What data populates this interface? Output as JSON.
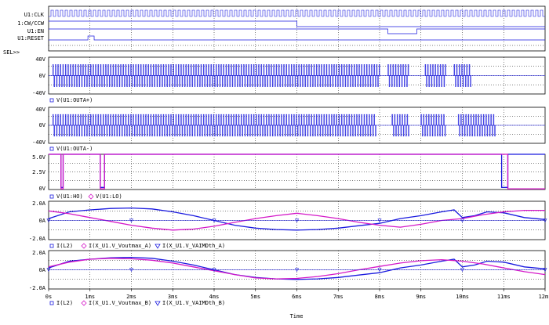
{
  "colors": {
    "trace_blue": "#1a1adf",
    "trace_magenta": "#d418c8",
    "frame": "#000000",
    "grid": "#000000",
    "text": "#000000"
  },
  "digital": {
    "signals": [
      "U1:CLK",
      "1:CW/CCW",
      "U1:EN",
      "U1:RESET"
    ],
    "selector": "SEL>>"
  },
  "chart_data": [
    {
      "type": "line",
      "name": "OUTA+",
      "legend": [
        "V(U1:OUTA+)"
      ],
      "yticks": [
        "40V",
        "0V",
        "-40V"
      ],
      "ylim": [
        -40,
        40
      ],
      "xlim": [
        0,
        12
      ],
      "series": [
        {
          "name": "V(U1:OUTA+)",
          "color": "#1a1adf",
          "kind": "pwm",
          "high": 24,
          "low": -24,
          "segments": [
            [
              0.1,
              8.0
            ],
            [
              8.2,
              8.7
            ],
            [
              9.1,
              9.6
            ],
            [
              9.8,
              10.2
            ]
          ]
        }
      ]
    },
    {
      "type": "line",
      "name": "OUTA-",
      "legend": [
        "V(U1:OUTA-)"
      ],
      "yticks": [
        "40V",
        "0V",
        "-40V"
      ],
      "ylim": [
        -40,
        40
      ],
      "xlim": [
        0,
        12
      ],
      "series": [
        {
          "name": "V(U1:OUTA-)",
          "color": "#1a1adf",
          "kind": "pwm",
          "high": 24,
          "low": -24,
          "segments": [
            [
              0.1,
              7.9
            ],
            [
              8.3,
              8.7
            ],
            [
              9.0,
              9.6
            ],
            [
              9.9,
              10.8
            ]
          ]
        }
      ]
    },
    {
      "type": "line",
      "name": "HO_LO",
      "legend": [
        "V(U1:HO)",
        "V(U1:LO)"
      ],
      "yticks": [
        "5.0V",
        "2.5V",
        "0V"
      ],
      "ylim": [
        0,
        5
      ],
      "xlim": [
        0,
        12
      ],
      "series": [
        {
          "name": "V(U1:HO)",
          "color": "#1a1adf",
          "x": [
            0,
            0.3,
            0.3,
            0.35,
            0.35,
            1.25,
            1.25,
            1.35,
            1.35,
            10.95,
            10.95,
            11.1,
            11.1,
            12.0
          ],
          "y": [
            5,
            5,
            0.3,
            0.3,
            5,
            5,
            0.3,
            0.3,
            5,
            5,
            0.3,
            0.3,
            5,
            5
          ]
        },
        {
          "name": "V(U1:LO)",
          "color": "#d418c8",
          "x": [
            0,
            0.3,
            0.3,
            0.35,
            0.35,
            1.25,
            1.25,
            1.35,
            1.35,
            11.1,
            11.1,
            12.0
          ],
          "y": [
            5,
            5,
            0.1,
            0.1,
            5,
            5,
            0.1,
            0.1,
            5,
            5,
            0.1,
            0.1
          ]
        }
      ]
    },
    {
      "type": "line",
      "name": "Current A",
      "legend": [
        "I(L2)",
        "I(X_U1.V_Voutmax_A)",
        "I(X_U1.V_VAIMDth_A)"
      ],
      "yticks": [
        "2.0A",
        "0A",
        "-2.0A"
      ],
      "ylim": [
        -2,
        2
      ],
      "xlim": [
        0,
        12
      ],
      "series": [
        {
          "name": "I(L2)",
          "color": "#1a1adf",
          "x": [
            0,
            0.5,
            1.0,
            1.5,
            2.0,
            2.5,
            3.0,
            3.5,
            4.0,
            4.5,
            5.0,
            5.5,
            6.0,
            6.5,
            7.0,
            7.5,
            8.0,
            8.5,
            9.0,
            9.5,
            9.8,
            10.0,
            10.3,
            10.6,
            11.0,
            11.5,
            12.0
          ],
          "y": [
            0.2,
            0.9,
            1.1,
            1.25,
            1.3,
            1.2,
            0.9,
            0.5,
            0.0,
            -0.5,
            -0.8,
            -0.95,
            -1.0,
            -0.95,
            -0.8,
            -0.55,
            -0.3,
            0.2,
            0.5,
            0.9,
            1.1,
            0.3,
            0.5,
            0.9,
            0.8,
            0.3,
            0.1
          ]
        },
        {
          "name": "I(X_U1.V_Voutmax_A)",
          "color": "#d418c8",
          "x": [
            0,
            0.5,
            1.0,
            1.5,
            2.0,
            2.5,
            3.0,
            3.5,
            4.0,
            4.5,
            5.0,
            5.5,
            6.0,
            6.5,
            7.0,
            7.5,
            8.0,
            8.5,
            9.0,
            9.5,
            10.0,
            10.5,
            11.0,
            11.5,
            12.0
          ],
          "y": [
            1.0,
            0.7,
            0.3,
            -0.1,
            -0.5,
            -0.8,
            -1.0,
            -0.9,
            -0.6,
            -0.2,
            0.2,
            0.5,
            0.75,
            0.5,
            0.2,
            -0.2,
            -0.5,
            -0.7,
            -0.4,
            0.0,
            0.2,
            0.6,
            0.9,
            1.05,
            1.05
          ]
        },
        {
          "name": "I(X_U1.V_VAIMDth_A)",
          "color": "#1a1adf",
          "marker": "tri",
          "x": [
            0,
            2,
            4,
            6,
            8,
            10,
            12
          ],
          "y": [
            0,
            0,
            0,
            0,
            0,
            0,
            0
          ]
        }
      ]
    },
    {
      "type": "line",
      "name": "Current B",
      "legend": [
        "I(L2)",
        "I(X_U1.V_Voutmax_B)",
        "I(X_U1.V_VAIMDth_B)"
      ],
      "yticks": [
        "2.0A",
        "0A",
        "-2.0A"
      ],
      "ylim": [
        -2,
        2
      ],
      "xlim": [
        0,
        12
      ],
      "xlabel": "Time",
      "xticks": [
        "0s",
        "1ms",
        "2ms",
        "3ms",
        "4ms",
        "5ms",
        "6ms",
        "7ms",
        "8ms",
        "9ms",
        "10ms",
        "11ms",
        "12ms"
      ],
      "series": [
        {
          "name": "I(L2)",
          "color": "#1a1adf",
          "x": [
            0,
            0.5,
            1.0,
            1.5,
            2.0,
            2.5,
            3.0,
            3.5,
            4.0,
            4.5,
            5.0,
            5.5,
            6.0,
            6.5,
            7.0,
            7.5,
            8.0,
            8.5,
            9.0,
            9.5,
            9.8,
            10.0,
            10.3,
            10.6,
            11.0,
            11.5,
            12.0
          ],
          "y": [
            0.2,
            0.9,
            1.1,
            1.25,
            1.3,
            1.2,
            0.9,
            0.5,
            0.0,
            -0.5,
            -0.8,
            -0.95,
            -1.0,
            -0.95,
            -0.8,
            -0.55,
            -0.3,
            0.2,
            0.5,
            0.9,
            1.1,
            0.3,
            0.5,
            0.9,
            0.8,
            0.3,
            0.1
          ]
        },
        {
          "name": "I(X_U1.V_Voutmax_B)",
          "color": "#d418c8",
          "x": [
            0,
            0.5,
            1.0,
            1.5,
            2.0,
            2.5,
            3.0,
            3.5,
            4.0,
            4.5,
            5.0,
            5.5,
            6.0,
            6.5,
            7.0,
            7.5,
            8.0,
            8.5,
            9.0,
            9.5,
            10.0,
            10.5,
            11.0,
            11.5,
            12.0
          ],
          "y": [
            0.3,
            0.8,
            1.1,
            1.2,
            1.15,
            1.0,
            0.7,
            0.3,
            -0.1,
            -0.5,
            -0.85,
            -0.95,
            -0.9,
            -0.7,
            -0.4,
            0.0,
            0.35,
            0.7,
            0.95,
            1.05,
            0.9,
            0.6,
            0.2,
            -0.2,
            -0.5
          ]
        },
        {
          "name": "I(X_U1.V_VAIMDth_B)",
          "color": "#1a1adf",
          "marker": "tri",
          "x": [
            0,
            2,
            4,
            6,
            8,
            10,
            12
          ],
          "y": [
            0,
            0,
            0,
            0,
            0,
            0,
            0
          ]
        }
      ]
    }
  ]
}
